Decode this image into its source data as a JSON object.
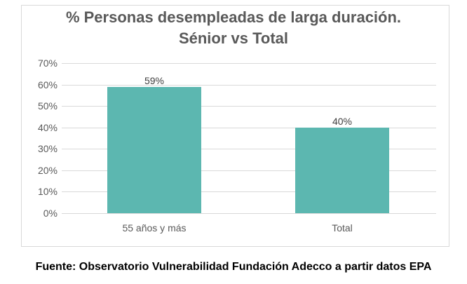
{
  "chart_data": {
    "type": "bar",
    "title": "% Personas desempleadas de larga duración. Sénior vs Total",
    "title_lines": [
      "% Personas desempleadas de larga duración.",
      "Sénior vs Total"
    ],
    "categories": [
      "55 años y más",
      "Total"
    ],
    "values": [
      59,
      40
    ],
    "value_labels": [
      "59%",
      "40%"
    ],
    "xlabel": "",
    "ylabel": "",
    "ylim": [
      0,
      70
    ],
    "yticks": [
      "0%",
      "10%",
      "20%",
      "30%",
      "40%",
      "50%",
      "60%",
      "70%"
    ],
    "grid": true,
    "legend": "none",
    "bar_color": "#5cb7b0"
  },
  "source": "Fuente: Observatorio Vulnerabilidad Fundación Adecco a partir datos EPA"
}
